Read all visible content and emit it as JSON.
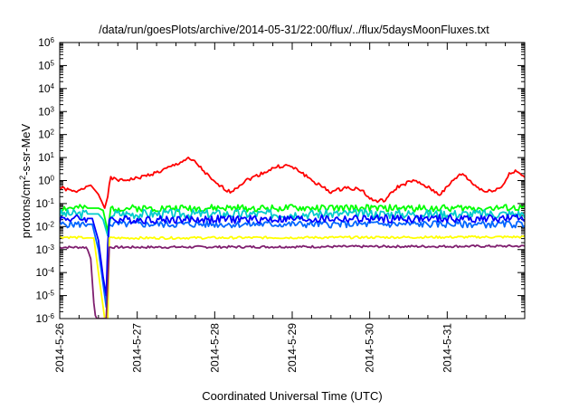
{
  "chart_data": {
    "type": "line",
    "title": "/data/run/goesPlots/archive/2014-05-31/22:00/flux/../flux/5daysMoonFluxes.txt",
    "xlabel": "Coordinated Universal Time (UTC)",
    "ylabel": {
      "prefix": "protons/cm",
      "sup": "2",
      "suffix": "-s-sr-MeV"
    },
    "yscale": "log",
    "ylim_exp": [
      -6,
      6
    ],
    "y_ticks": [
      {
        "base": "10",
        "exp": "-6"
      },
      {
        "base": "10",
        "exp": "-5"
      },
      {
        "base": "10",
        "exp": "-4"
      },
      {
        "base": "10",
        "exp": "-3"
      },
      {
        "base": "10",
        "exp": "-2"
      },
      {
        "base": "10",
        "exp": "-1"
      },
      {
        "base": "10",
        "exp": "0"
      },
      {
        "base": "10",
        "exp": "1"
      },
      {
        "base": "10",
        "exp": "2"
      },
      {
        "base": "10",
        "exp": "3"
      },
      {
        "base": "10",
        "exp": "4"
      },
      {
        "base": "10",
        "exp": "5"
      },
      {
        "base": "10",
        "exp": "6"
      }
    ],
    "x_ticks": [
      "2014-5-26",
      "2014-5-27",
      "2014-5-28",
      "2014-5-29",
      "2014-5-30",
      "2014-5-31"
    ],
    "xlim_days": [
      0,
      6
    ],
    "grid": false,
    "legend": "none",
    "series": [
      {
        "color": "#ff0000",
        "log10_anchors": [
          [
            0,
            -0.3
          ],
          [
            0.2,
            -0.5
          ],
          [
            0.3,
            -0.3
          ],
          [
            0.4,
            -0.2
          ],
          [
            0.5,
            -0.6
          ],
          [
            0.58,
            -1.2
          ],
          [
            0.62,
            -0.7
          ],
          [
            0.65,
            0.1
          ],
          [
            0.8,
            0.0
          ],
          [
            1.0,
            0.1
          ],
          [
            1.3,
            0.4
          ],
          [
            1.5,
            0.7
          ],
          [
            1.65,
            0.95
          ],
          [
            1.75,
            0.8
          ],
          [
            2.0,
            -0.1
          ],
          [
            2.2,
            -0.5
          ],
          [
            2.4,
            0.0
          ],
          [
            2.6,
            0.3
          ],
          [
            2.8,
            0.6
          ],
          [
            2.95,
            0.65
          ],
          [
            3.1,
            0.4
          ],
          [
            3.3,
            -0.1
          ],
          [
            3.5,
            -0.5
          ],
          [
            3.7,
            -0.3
          ],
          [
            3.9,
            -0.4
          ],
          [
            4.0,
            -0.8
          ],
          [
            4.1,
            -0.9
          ],
          [
            4.2,
            -0.85
          ],
          [
            4.35,
            -0.3
          ],
          [
            4.55,
            0.0
          ],
          [
            4.7,
            -0.2
          ],
          [
            4.9,
            -0.6
          ],
          [
            5.0,
            -0.3
          ],
          [
            5.1,
            0.1
          ],
          [
            5.2,
            0.3
          ],
          [
            5.35,
            -0.2
          ],
          [
            5.5,
            -0.5
          ],
          [
            5.7,
            -0.3
          ],
          [
            5.8,
            0.3
          ],
          [
            5.9,
            0.4
          ],
          [
            6.0,
            0.1
          ]
        ],
        "noise": 0.15
      },
      {
        "color": "#00ff00",
        "log10_anchors": [
          [
            0,
            -1.2
          ],
          [
            0.5,
            -1.2
          ],
          [
            0.56,
            -1.3
          ],
          [
            0.62,
            -2.2
          ],
          [
            0.66,
            -1.2
          ],
          [
            6.0,
            -1.2
          ]
        ],
        "noise": 0.3
      },
      {
        "color": "#00cccc",
        "log10_anchors": [
          [
            0,
            -1.45
          ],
          [
            0.5,
            -1.45
          ],
          [
            0.56,
            -1.7
          ],
          [
            0.62,
            -2.4
          ],
          [
            0.66,
            -1.45
          ],
          [
            6.0,
            -1.45
          ]
        ],
        "noise": 0.4
      },
      {
        "color": "#0000ff",
        "log10_anchors": [
          [
            0,
            -1.65
          ],
          [
            0.42,
            -1.65
          ],
          [
            0.5,
            -2.6
          ],
          [
            0.56,
            -4.2
          ],
          [
            0.6,
            -5.0
          ],
          [
            0.63,
            -1.7
          ],
          [
            6.0,
            -1.65
          ]
        ],
        "noise": 0.35
      },
      {
        "color": "#0066ff",
        "log10_anchors": [
          [
            0,
            -1.9
          ],
          [
            0.42,
            -1.9
          ],
          [
            0.5,
            -3.0
          ],
          [
            0.56,
            -4.5
          ],
          [
            0.6,
            -5.5
          ],
          [
            0.63,
            -1.9
          ],
          [
            6.0,
            -1.9
          ]
        ],
        "noise": 0.3
      },
      {
        "color": "#ffff00",
        "log10_anchors": [
          [
            0,
            -2.45
          ],
          [
            0.44,
            -2.5
          ],
          [
            0.52,
            -4.5
          ],
          [
            0.58,
            -6.0
          ],
          [
            0.62,
            -6.0
          ],
          [
            0.64,
            -2.5
          ],
          [
            6.0,
            -2.45
          ]
        ],
        "noise": 0.1
      },
      {
        "color": "#7f1f6f",
        "log10_anchors": [
          [
            0,
            -2.9
          ],
          [
            0.35,
            -2.9
          ],
          [
            0.4,
            -3.4
          ],
          [
            0.45,
            -5.8
          ],
          [
            0.48,
            -6.0
          ],
          [
            0.5,
            -6.0
          ],
          [
            0.55,
            -6.0
          ],
          [
            0.6,
            -6.0
          ],
          [
            0.64,
            -2.9
          ],
          [
            6.0,
            -2.85
          ]
        ],
        "noise": 0.1
      }
    ]
  }
}
